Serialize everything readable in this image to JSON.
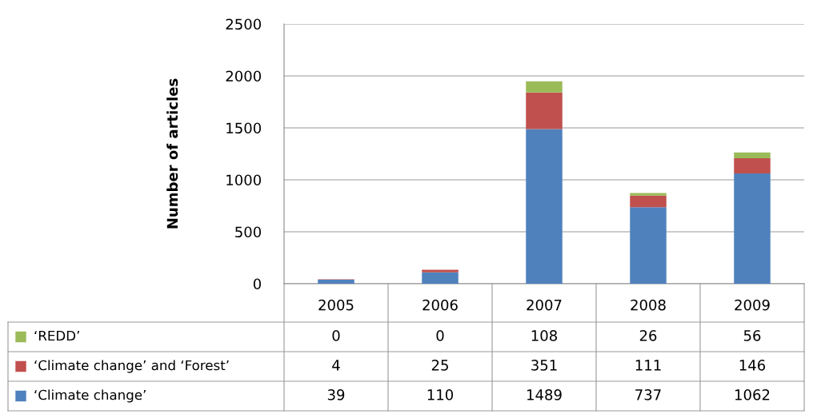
{
  "chart_data": {
    "type": "bar",
    "stacked": true,
    "ylabel": "Number of articles",
    "categories": [
      "2005",
      "2006",
      "2007",
      "2008",
      "2009"
    ],
    "series": [
      {
        "name": "‘Climate change’",
        "color": "#4f81bd",
        "values": [
          39,
          110,
          1489,
          737,
          1062
        ]
      },
      {
        "name": "‘Climate change’ and ‘Forest’",
        "color": "#c0504d",
        "values": [
          4,
          25,
          351,
          111,
          146
        ]
      },
      {
        "name": "‘REDD’",
        "color": "#9bbb59",
        "values": [
          0,
          0,
          108,
          26,
          56
        ]
      }
    ],
    "ylim": [
      0,
      2500
    ],
    "yticks": [
      0,
      500,
      1000,
      1500,
      2000,
      2500
    ],
    "grid": "y",
    "data_labels": true,
    "legend": "bottom left"
  }
}
